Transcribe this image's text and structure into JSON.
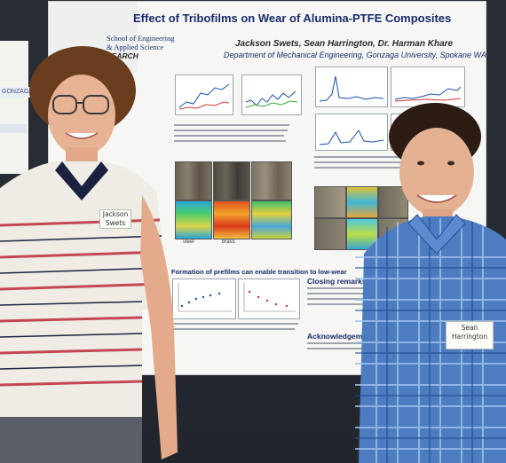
{
  "poster": {
    "title": "Effect of Tribofilms on Wear of Alumina-PTFE Composites",
    "authors": "Jackson Swets, Sean Harrington, Dr. Harman Khare",
    "department": "Department of Mechanical Engineering, Gonzaga University, Spokane WA",
    "school_line1": "School of Engineering",
    "school_line2": "& Applied Science",
    "research_tag": "SEARCH",
    "left_panel_label": "GONZAGA",
    "section_prefilms": "Formation of prefilms can enable transition to low-wear",
    "section_closing": "Closing remarks",
    "section_ack": "Acknowledgements",
    "micro_label_steel": "steel",
    "micro_label_brass": "brass"
  },
  "name_badges": {
    "left": "Jackson Swets",
    "right": "Sean Harrington"
  },
  "colors": {
    "wall": "#23272d",
    "poster_bg": "#f6f7f4",
    "title_blue": "#1a2a6b",
    "left_shirt_stripe": "#c44656",
    "right_shirt_check": "#3f6fb8"
  }
}
